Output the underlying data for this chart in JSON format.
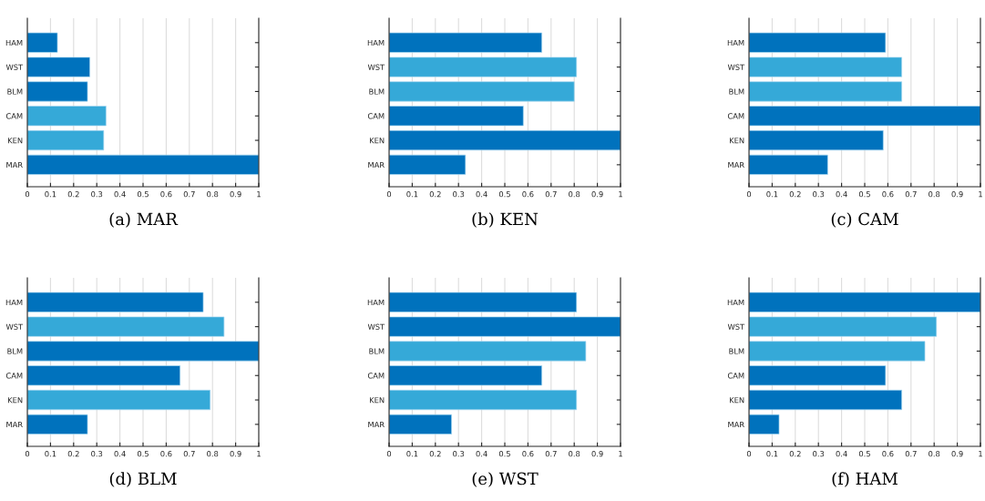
{
  "chart_data": [
    {
      "type": "bar",
      "orientation": "horizontal",
      "title": "(a) MAR",
      "categories": [
        "HAM",
        "WST",
        "BLM",
        "CAM",
        "KEN",
        "MAR"
      ],
      "values": [
        0.13,
        0.27,
        0.26,
        0.34,
        0.33,
        1
      ],
      "colors": [
        "#0072bd",
        "#0072bd",
        "#0072bd",
        "#35a9d8",
        "#35a9d8",
        "#0072bd"
      ],
      "xlim": [
        0,
        1
      ],
      "xticks": [
        0,
        0.1,
        0.2,
        0.3,
        0.4,
        0.5,
        0.6,
        0.7,
        0.8,
        0.9,
        1
      ],
      "grid": "x"
    },
    {
      "type": "bar",
      "orientation": "horizontal",
      "title": "(b) KEN",
      "categories": [
        "HAM",
        "WST",
        "BLM",
        "CAM",
        "KEN",
        "MAR"
      ],
      "values": [
        0.66,
        0.81,
        0.8,
        0.58,
        1,
        0.33
      ],
      "colors": [
        "#0072bd",
        "#35a9d8",
        "#35a9d8",
        "#0072bd",
        "#0072bd",
        "#0072bd"
      ],
      "xlim": [
        0,
        1
      ],
      "xticks": [
        0,
        0.1,
        0.2,
        0.3,
        0.4,
        0.5,
        0.6,
        0.7,
        0.8,
        0.9,
        1
      ],
      "grid": "x"
    },
    {
      "type": "bar",
      "orientation": "horizontal",
      "title": "(c) CAM",
      "categories": [
        "HAM",
        "WST",
        "BLM",
        "CAM",
        "KEN",
        "MAR"
      ],
      "values": [
        0.59,
        0.66,
        0.66,
        1,
        0.58,
        0.34
      ],
      "colors": [
        "#0072bd",
        "#35a9d8",
        "#35a9d8",
        "#0072bd",
        "#0072bd",
        "#0072bd"
      ],
      "xlim": [
        0,
        1
      ],
      "xticks": [
        0,
        0.1,
        0.2,
        0.3,
        0.4,
        0.5,
        0.6,
        0.7,
        0.8,
        0.9,
        1
      ],
      "grid": "x"
    },
    {
      "type": "bar",
      "orientation": "horizontal",
      "title": "(d) BLM",
      "categories": [
        "HAM",
        "WST",
        "BLM",
        "CAM",
        "KEN",
        "MAR"
      ],
      "values": [
        0.76,
        0.85,
        1,
        0.66,
        0.79,
        0.26
      ],
      "colors": [
        "#0072bd",
        "#35a9d8",
        "#0072bd",
        "#0072bd",
        "#35a9d8",
        "#0072bd"
      ],
      "xlim": [
        0,
        1
      ],
      "xticks": [
        0,
        0.1,
        0.2,
        0.3,
        0.4,
        0.5,
        0.6,
        0.7,
        0.8,
        0.9,
        1
      ],
      "grid": "x"
    },
    {
      "type": "bar",
      "orientation": "horizontal",
      "title": "(e) WST",
      "categories": [
        "HAM",
        "WST",
        "BLM",
        "CAM",
        "KEN",
        "MAR"
      ],
      "values": [
        0.81,
        1,
        0.85,
        0.66,
        0.81,
        0.27
      ],
      "colors": [
        "#0072bd",
        "#0072bd",
        "#35a9d8",
        "#0072bd",
        "#35a9d8",
        "#0072bd"
      ],
      "xlim": [
        0,
        1
      ],
      "xticks": [
        0,
        0.1,
        0.2,
        0.3,
        0.4,
        0.5,
        0.6,
        0.7,
        0.8,
        0.9,
        1
      ],
      "grid": "x"
    },
    {
      "type": "bar",
      "orientation": "horizontal",
      "title": "(f) HAM",
      "categories": [
        "HAM",
        "WST",
        "BLM",
        "CAM",
        "KEN",
        "MAR"
      ],
      "values": [
        1,
        0.81,
        0.76,
        0.59,
        0.66,
        0.13
      ],
      "colors": [
        "#0072bd",
        "#35a9d8",
        "#35a9d8",
        "#0072bd",
        "#0072bd",
        "#0072bd"
      ],
      "xlim": [
        0,
        1
      ],
      "xticks": [
        0,
        0.1,
        0.2,
        0.3,
        0.4,
        0.5,
        0.6,
        0.7,
        0.8,
        0.9,
        1
      ],
      "grid": "x"
    }
  ]
}
